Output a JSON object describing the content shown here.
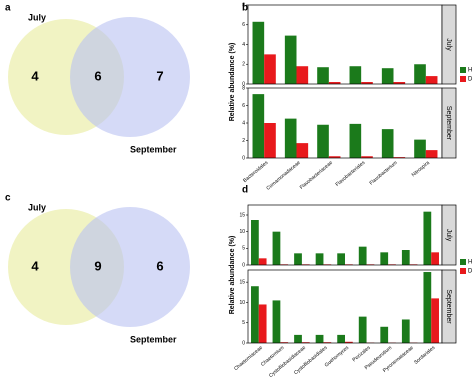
{
  "chart_data": [
    {
      "type": "venn",
      "panel": "a",
      "sets": [
        "July",
        "September"
      ],
      "values": [
        4,
        6,
        7
      ],
      "colors": [
        "#eef0b4",
        "#b9c1f2"
      ]
    },
    {
      "type": "bar",
      "panel": "b",
      "ylabel": "Relative abundance (%)",
      "categories": [
        "Bacteroidales",
        "Comamonadaceae",
        "Flavobacteriaceae",
        "Flavobacteriales",
        "Flavobacterium",
        "Nitrospira"
      ],
      "ylim": [
        0,
        8
      ],
      "yticks": [
        0,
        2,
        4,
        6,
        8
      ],
      "facets": [
        {
          "name": "July",
          "series": [
            {
              "name": "H",
              "color": "#1b7a1b",
              "values": [
                6.3,
                4.9,
                1.7,
                1.8,
                1.6,
                2.0
              ]
            },
            {
              "name": "D",
              "color": "#e8191c",
              "values": [
                3.0,
                1.8,
                0.2,
                0.2,
                0.2,
                0.8
              ]
            }
          ]
        },
        {
          "name": "September",
          "series": [
            {
              "name": "H",
              "color": "#1b7a1b",
              "values": [
                7.3,
                4.5,
                3.8,
                3.9,
                3.3,
                2.1
              ]
            },
            {
              "name": "D",
              "color": "#e8191c",
              "values": [
                4.0,
                1.7,
                0.2,
                0.2,
                0.1,
                0.9
              ]
            }
          ]
        }
      ]
    },
    {
      "type": "venn",
      "panel": "c",
      "sets": [
        "July",
        "September"
      ],
      "values": [
        4,
        9,
        6
      ],
      "colors": [
        "#eef0b4",
        "#b9c1f2"
      ]
    },
    {
      "type": "bar",
      "panel": "d",
      "ylabel": "Relative abundance (%)",
      "categories": [
        "Chaetomiaceae",
        "Chaetomium",
        "Cystofilobasidiaceae",
        "Cystofilobasidiales",
        "Guehomyces",
        "Pezizales",
        "Pseudeurotium",
        "Pyronemataceae",
        "Sordariales"
      ],
      "ylim": [
        0,
        18
      ],
      "yticks": [
        0,
        5,
        10,
        15
      ],
      "facets": [
        {
          "name": "July",
          "series": [
            {
              "name": "H",
              "color": "#1b7a1b",
              "values": [
                13.5,
                10,
                3.5,
                3.5,
                3.5,
                5.5,
                3.8,
                4.5,
                16
              ]
            },
            {
              "name": "D",
              "color": "#e8191c",
              "values": [
                2,
                0.2,
                0.2,
                0.2,
                0.2,
                0.2,
                0.2,
                0.2,
                3.8
              ]
            }
          ]
        },
        {
          "name": "September",
          "series": [
            {
              "name": "H",
              "color": "#1b7a1b",
              "values": [
                14,
                10.5,
                2,
                2,
                2,
                6.5,
                4,
                5.8,
                17.5
              ]
            },
            {
              "name": "D",
              "color": "#e8191c",
              "values": [
                9.5,
                0.2,
                0.2,
                0.2,
                0.3,
                0.1,
                0.1,
                0.1,
                11
              ]
            }
          ]
        }
      ]
    }
  ]
}
